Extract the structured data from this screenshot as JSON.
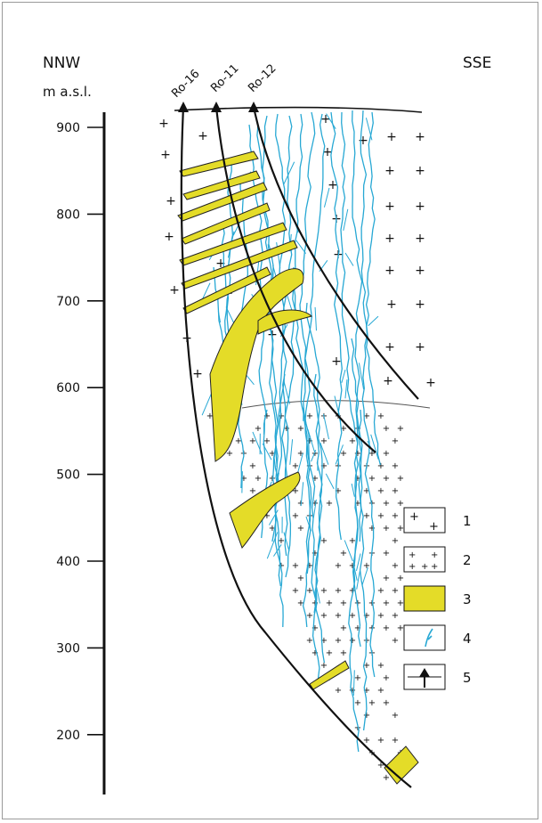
{
  "header": {
    "left_direction": "NNW",
    "right_direction": "SSE",
    "elevation_unit": "m a.s.l."
  },
  "axis": {
    "ticks": [
      {
        "value": 900,
        "label": "900"
      },
      {
        "value": 800,
        "label": "800"
      },
      {
        "value": 700,
        "label": "700"
      },
      {
        "value": 600,
        "label": "600"
      },
      {
        "value": 500,
        "label": "500"
      },
      {
        "value": 400,
        "label": "400"
      },
      {
        "value": 300,
        "label": "300"
      },
      {
        "value": 200,
        "label": "200"
      }
    ]
  },
  "boreholes": [
    {
      "id": "ro16",
      "label": "Ro-16"
    },
    {
      "id": "ro11",
      "label": "Ro-11"
    },
    {
      "id": "ro12",
      "label": "Ro-12"
    }
  ],
  "legend": {
    "items": [
      {
        "number": "1",
        "symbol": "sparse-crosses"
      },
      {
        "number": "2",
        "symbol": "dense-crosses"
      },
      {
        "number": "3",
        "symbol": "yellow-fill"
      },
      {
        "number": "4",
        "symbol": "blue-veins"
      },
      {
        "number": "5",
        "symbol": "borehole-arrow"
      }
    ]
  },
  "colors": {
    "vein_blue": "#27a8d4",
    "body_yellow": "#e4dc28",
    "line": "#111111",
    "frame": "#9a9a9a"
  }
}
